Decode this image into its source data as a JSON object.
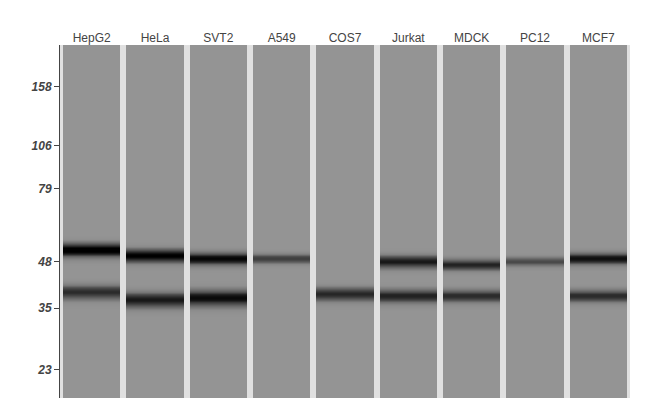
{
  "chart_data": {
    "type": "gel",
    "categories": [
      "HepG2",
      "HeLa",
      "SVT2",
      "A549",
      "COS7",
      "Jurkat",
      "MDCK",
      "PC12",
      "MCF7"
    ],
    "bands": [
      [
        {
          "pos": 52,
          "intensity": 0.88,
          "sigma": 1.5
        },
        {
          "pos": 39,
          "intensity": 0.55,
          "sigma": 1.2
        }
      ],
      [
        {
          "pos": 50,
          "intensity": 0.82,
          "sigma": 1.4
        },
        {
          "pos": 37,
          "intensity": 0.65,
          "sigma": 1.2
        }
      ],
      [
        {
          "pos": 49,
          "intensity": 0.75,
          "sigma": 1.3
        },
        {
          "pos": 37.5,
          "intensity": 0.72,
          "sigma": 1.3
        }
      ],
      [
        {
          "pos": 49,
          "intensity": 0.45,
          "sigma": 1.0
        }
      ],
      [
        {
          "pos": 38.5,
          "intensity": 0.58,
          "sigma": 1.1
        }
      ],
      [
        {
          "pos": 48,
          "intensity": 0.65,
          "sigma": 1.3
        },
        {
          "pos": 38,
          "intensity": 0.6,
          "sigma": 1.1
        }
      ],
      [
        {
          "pos": 47,
          "intensity": 0.6,
          "sigma": 1.1
        },
        {
          "pos": 38,
          "intensity": 0.55,
          "sigma": 1.0
        }
      ],
      [
        {
          "pos": 48,
          "intensity": 0.4,
          "sigma": 0.9
        }
      ],
      [
        {
          "pos": 49,
          "intensity": 0.7,
          "sigma": 1.2
        },
        {
          "pos": 38,
          "intensity": 0.55,
          "sigma": 1.0
        }
      ]
    ],
    "ylim": [
      19,
      210
    ],
    "yticks": [
      158,
      106,
      79,
      48,
      35,
      23
    ],
    "log": "y",
    "grid": false,
    "color": "#949494"
  }
}
